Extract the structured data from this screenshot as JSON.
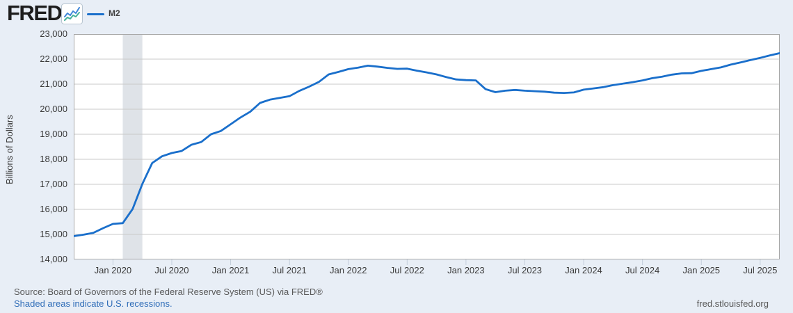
{
  "header": {
    "logo_text": "FRED",
    "registered_mark": "®",
    "icon": "fred-sparkline-icon"
  },
  "footer": {
    "source_line": "Source: Board of Governors of the Federal Reserve System (US) via FRED®",
    "recession_note": "Shaded areas indicate U.S. recessions.",
    "site_link": "fred.stlouisfed.org"
  },
  "colors": {
    "background": "#e8eef6",
    "plot_bg": "#ffffff",
    "line": "#1a6fcb",
    "grid": "#c9c9c9",
    "frame": "#a8a8a8",
    "recession_band": "#dfe3e8",
    "tick": "#c3cedb",
    "text": "#3a3a3a",
    "muted_text": "#595959",
    "link": "#2f6db8",
    "icon_line_blue": "#3d85d8",
    "icon_line_green": "#45b09a"
  },
  "chart_data": {
    "type": "line",
    "title": "M2",
    "ylabel": "Billions of Dollars",
    "xlabel": "",
    "ylim": [
      14000,
      23000
    ],
    "ytick_step": 1000,
    "ytick_labels": [
      "23,000",
      "22,000",
      "21,000",
      "20,000",
      "19,000",
      "18,000",
      "17,000",
      "16,000",
      "15,000",
      "14,000"
    ],
    "grid": true,
    "legend_position": "top-left",
    "x_range": [
      "2019-09",
      "2025-09"
    ],
    "xticks": [
      {
        "label": "Jan 2020",
        "month_index": 4
      },
      {
        "label": "Jul 2020",
        "month_index": 10
      },
      {
        "label": "Jan 2021",
        "month_index": 16
      },
      {
        "label": "Jul 2021",
        "month_index": 22
      },
      {
        "label": "Jan 2022",
        "month_index": 28
      },
      {
        "label": "Jul 2022",
        "month_index": 34
      },
      {
        "label": "Jan 2023",
        "month_index": 40
      },
      {
        "label": "Jul 2023",
        "month_index": 46
      },
      {
        "label": "Jan 2024",
        "month_index": 52
      },
      {
        "label": "Jul 2024",
        "month_index": 58
      },
      {
        "label": "Jan 2025",
        "month_index": 64
      },
      {
        "label": "Jul 2025",
        "month_index": 70
      }
    ],
    "recession_band": {
      "start_month_index": 5,
      "end_month_index": 7,
      "note": "Feb 2020 - Apr 2020 U.S. recession"
    },
    "series": [
      {
        "name": "M2",
        "units": "Billions of Dollars",
        "observations": [
          [
            "2019-09",
            14930
          ],
          [
            "2019-10",
            14990
          ],
          [
            "2019-11",
            15060
          ],
          [
            "2019-12",
            15250
          ],
          [
            "2020-01",
            15420
          ],
          [
            "2020-02",
            15450
          ],
          [
            "2020-03",
            16010
          ],
          [
            "2020-04",
            17020
          ],
          [
            "2020-05",
            17850
          ],
          [
            "2020-06",
            18120
          ],
          [
            "2020-07",
            18250
          ],
          [
            "2020-08",
            18330
          ],
          [
            "2020-09",
            18580
          ],
          [
            "2020-10",
            18690
          ],
          [
            "2020-11",
            19000
          ],
          [
            "2020-12",
            19130
          ],
          [
            "2021-01",
            19400
          ],
          [
            "2021-02",
            19670
          ],
          [
            "2021-03",
            19900
          ],
          [
            "2021-04",
            20250
          ],
          [
            "2021-05",
            20380
          ],
          [
            "2021-06",
            20450
          ],
          [
            "2021-07",
            20520
          ],
          [
            "2021-08",
            20730
          ],
          [
            "2021-09",
            20900
          ],
          [
            "2021-10",
            21090
          ],
          [
            "2021-11",
            21390
          ],
          [
            "2021-12",
            21490
          ],
          [
            "2022-01",
            21600
          ],
          [
            "2022-02",
            21660
          ],
          [
            "2022-03",
            21740
          ],
          [
            "2022-04",
            21700
          ],
          [
            "2022-05",
            21650
          ],
          [
            "2022-06",
            21610
          ],
          [
            "2022-07",
            21620
          ],
          [
            "2022-08",
            21540
          ],
          [
            "2022-09",
            21470
          ],
          [
            "2022-10",
            21390
          ],
          [
            "2022-11",
            21280
          ],
          [
            "2022-12",
            21190
          ],
          [
            "2023-01",
            21160
          ],
          [
            "2023-02",
            21150
          ],
          [
            "2023-03",
            20800
          ],
          [
            "2023-04",
            20680
          ],
          [
            "2023-05",
            20740
          ],
          [
            "2023-06",
            20770
          ],
          [
            "2023-07",
            20740
          ],
          [
            "2023-08",
            20720
          ],
          [
            "2023-09",
            20700
          ],
          [
            "2023-10",
            20660
          ],
          [
            "2023-11",
            20650
          ],
          [
            "2023-12",
            20670
          ],
          [
            "2024-01",
            20780
          ],
          [
            "2024-02",
            20830
          ],
          [
            "2024-03",
            20880
          ],
          [
            "2024-04",
            20960
          ],
          [
            "2024-05",
            21020
          ],
          [
            "2024-06",
            21080
          ],
          [
            "2024-07",
            21150
          ],
          [
            "2024-08",
            21240
          ],
          [
            "2024-09",
            21300
          ],
          [
            "2024-10",
            21380
          ],
          [
            "2024-11",
            21430
          ],
          [
            "2024-12",
            21440
          ],
          [
            "2025-01",
            21530
          ],
          [
            "2025-02",
            21600
          ],
          [
            "2025-03",
            21670
          ],
          [
            "2025-04",
            21780
          ],
          [
            "2025-05",
            21870
          ],
          [
            "2025-06",
            21960
          ],
          [
            "2025-07",
            22050
          ],
          [
            "2025-08",
            22150
          ],
          [
            "2025-09",
            22240
          ]
        ]
      }
    ]
  }
}
